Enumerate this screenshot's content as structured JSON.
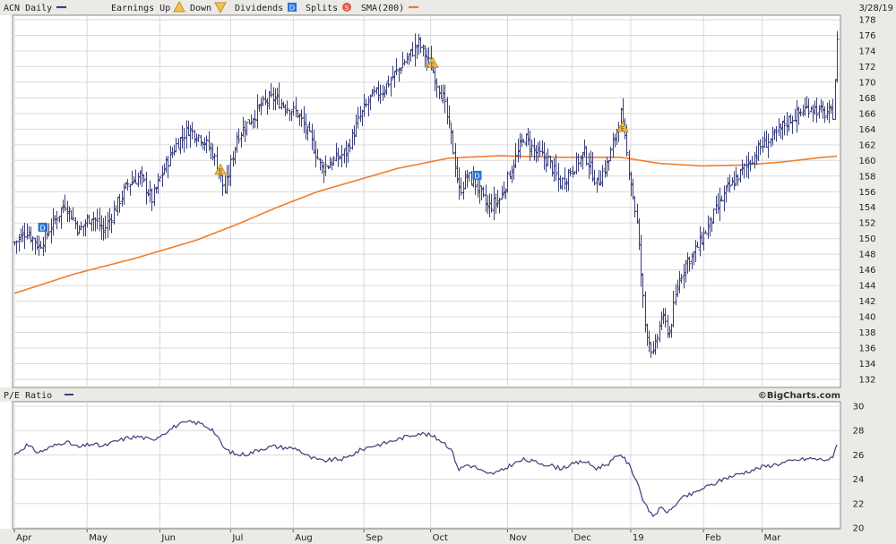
{
  "chart_data": [
    {
      "type": "ohlc",
      "ticker": "ACN",
      "period": "Daily",
      "date": "3/28/19",
      "legend": [
        {
          "label": "ACN Daily",
          "color": "#3a3f7a",
          "icon": "line-swatch"
        },
        {
          "label": "Earnings Up",
          "color": "#c98c14",
          "icon": "triangle-up"
        },
        {
          "label": "Down",
          "color": "#c98c14",
          "icon": "triangle-down"
        },
        {
          "label": "Dividends",
          "color": "#2a74d8",
          "icon": "square-d",
          "glyph": "D"
        },
        {
          "label": "Splits",
          "color": "#e05a4a",
          "icon": "circle-s",
          "glyph": "S"
        },
        {
          "label": "SMA(200)",
          "color": "#f07d2e",
          "icon": "line-swatch"
        }
      ],
      "ylim": [
        132,
        178
      ],
      "yticks": [
        132,
        134,
        136,
        138,
        140,
        142,
        144,
        146,
        148,
        150,
        152,
        154,
        156,
        158,
        160,
        162,
        164,
        166,
        168,
        170,
        172,
        174,
        176,
        178
      ],
      "grid": true,
      "price_anchors": [
        [
          0,
          149.5
        ],
        [
          6,
          151
        ],
        [
          12,
          149
        ],
        [
          19,
          152
        ],
        [
          25,
          154.5
        ],
        [
          32,
          151
        ],
        [
          38,
          153
        ],
        [
          44,
          151
        ],
        [
          50,
          154
        ],
        [
          56,
          157
        ],
        [
          62,
          158
        ],
        [
          68,
          155
        ],
        [
          74,
          159
        ],
        [
          80,
          162
        ],
        [
          86,
          164
        ],
        [
          92,
          163
        ],
        [
          98,
          161
        ],
        [
          104,
          156
        ],
        [
          110,
          163
        ],
        [
          116,
          165
        ],
        [
          122,
          167
        ],
        [
          128,
          168
        ],
        [
          134,
          167
        ],
        [
          140,
          166
        ],
        [
          146,
          163
        ],
        [
          152,
          159
        ],
        [
          158,
          160
        ],
        [
          164,
          161
        ],
        [
          170,
          165
        ],
        [
          176,
          168
        ],
        [
          182,
          169
        ],
        [
          188,
          171
        ],
        [
          194,
          173
        ],
        [
          200,
          175
        ],
        [
          206,
          172
        ],
        [
          212,
          168
        ],
        [
          216,
          163
        ],
        [
          220,
          156
        ],
        [
          224,
          158
        ],
        [
          228,
          157
        ],
        [
          234,
          154
        ],
        [
          240,
          155
        ],
        [
          246,
          159
        ],
        [
          252,
          163
        ],
        [
          258,
          161
        ],
        [
          264,
          160
        ],
        [
          270,
          157
        ],
        [
          276,
          159
        ],
        [
          282,
          161
        ],
        [
          288,
          157
        ],
        [
          294,
          160
        ],
        [
          300,
          166
        ],
        [
          304,
          159
        ],
        [
          308,
          152
        ],
        [
          312,
          139
        ],
        [
          316,
          135
        ],
        [
          320,
          140
        ],
        [
          324,
          138
        ],
        [
          328,
          144
        ],
        [
          332,
          147
        ],
        [
          336,
          148
        ],
        [
          340,
          150
        ],
        [
          346,
          153
        ],
        [
          352,
          156
        ],
        [
          358,
          158
        ],
        [
          364,
          160
        ],
        [
          370,
          162
        ],
        [
          376,
          163
        ],
        [
          382,
          165
        ],
        [
          388,
          166
        ],
        [
          394,
          167
        ],
        [
          400,
          166
        ],
        [
          405,
          166
        ],
        [
          407,
          175
        ]
      ],
      "sma_200": [
        [
          0,
          143
        ],
        [
          30,
          145.5
        ],
        [
          60,
          147.5
        ],
        [
          90,
          149.8
        ],
        [
          110,
          151.8
        ],
        [
          130,
          154
        ],
        [
          150,
          156
        ],
        [
          170,
          157.5
        ],
        [
          190,
          159
        ],
        [
          215,
          160.3
        ],
        [
          240,
          160.6
        ],
        [
          270,
          160.4
        ],
        [
          300,
          160.4
        ],
        [
          320,
          159.6
        ],
        [
          340,
          159.3
        ],
        [
          360,
          159.4
        ],
        [
          380,
          159.8
        ],
        [
          400,
          160.4
        ],
        [
          410,
          160.6
        ]
      ],
      "earnings_markers": [
        {
          "index": 102,
          "direction": "up",
          "glyph": "E"
        },
        {
          "index": 207,
          "direction": "up",
          "glyph": "E"
        },
        {
          "index": 301,
          "direction": "up",
          "glyph": "E"
        }
      ],
      "dividend_markers": [
        {
          "index": 14,
          "glyph": "D"
        },
        {
          "index": 229,
          "glyph": "D"
        }
      ]
    },
    {
      "type": "line",
      "title": "P/E Ratio",
      "series_color": "#3a3f7a",
      "ylim": [
        20,
        30
      ],
      "yticks": [
        20,
        22,
        24,
        26,
        28,
        30
      ],
      "grid": true,
      "values": [
        [
          0,
          26
        ],
        [
          6,
          26.8
        ],
        [
          12,
          26.2
        ],
        [
          19,
          26.7
        ],
        [
          25,
          27.1
        ],
        [
          32,
          26.6
        ],
        [
          38,
          26.9
        ],
        [
          44,
          26.7
        ],
        [
          50,
          27.1
        ],
        [
          56,
          27.4
        ],
        [
          62,
          27.5
        ],
        [
          68,
          27.2
        ],
        [
          74,
          27.8
        ],
        [
          80,
          28.4
        ],
        [
          86,
          28.7
        ],
        [
          92,
          28.6
        ],
        [
          98,
          28.1
        ],
        [
          104,
          26.5
        ],
        [
          110,
          26
        ],
        [
          116,
          26.1
        ],
        [
          122,
          26.5
        ],
        [
          128,
          26.7
        ],
        [
          134,
          26.6
        ],
        [
          140,
          26.5
        ],
        [
          146,
          25.8
        ],
        [
          152,
          25.5
        ],
        [
          158,
          25.6
        ],
        [
          164,
          25.7
        ],
        [
          170,
          26.3
        ],
        [
          176,
          26.7
        ],
        [
          182,
          26.9
        ],
        [
          188,
          27.2
        ],
        [
          194,
          27.5
        ],
        [
          200,
          27.8
        ],
        [
          206,
          27.6
        ],
        [
          212,
          27.1
        ],
        [
          216,
          26.5
        ],
        [
          220,
          24.8
        ],
        [
          224,
          25.2
        ],
        [
          228,
          25
        ],
        [
          234,
          24.4
        ],
        [
          240,
          24.6
        ],
        [
          246,
          25.2
        ],
        [
          252,
          25.6
        ],
        [
          258,
          25.4
        ],
        [
          264,
          25.2
        ],
        [
          270,
          24.9
        ],
        [
          276,
          25.2
        ],
        [
          282,
          25.5
        ],
        [
          288,
          24.9
        ],
        [
          294,
          25.3
        ],
        [
          300,
          26.1
        ],
        [
          304,
          25.2
        ],
        [
          308,
          23.9
        ],
        [
          312,
          21.9
        ],
        [
          316,
          21
        ],
        [
          320,
          21.6
        ],
        [
          324,
          21.3
        ],
        [
          328,
          22.1
        ],
        [
          332,
          22.6
        ],
        [
          336,
          22.8
        ],
        [
          340,
          23.2
        ],
        [
          346,
          23.6
        ],
        [
          352,
          24.1
        ],
        [
          358,
          24.4
        ],
        [
          364,
          24.7
        ],
        [
          370,
          25
        ],
        [
          376,
          25.2
        ],
        [
          382,
          25.4
        ],
        [
          388,
          25.6
        ],
        [
          394,
          25.7
        ],
        [
          400,
          25.6
        ],
        [
          405,
          25.7
        ],
        [
          407,
          27
        ]
      ]
    }
  ],
  "x_axis": {
    "n_days": 408,
    "months": [
      {
        "label": "Apr",
        "index": 0
      },
      {
        "label": "May",
        "index": 36
      },
      {
        "label": "Jun",
        "index": 72
      },
      {
        "label": "Jul",
        "index": 107
      },
      {
        "label": "Aug",
        "index": 138
      },
      {
        "label": "Sep",
        "index": 173
      },
      {
        "label": "Oct",
        "index": 206
      },
      {
        "label": "Nov",
        "index": 244
      },
      {
        "label": "Dec",
        "index": 276
      },
      {
        "label": "19",
        "index": 305
      },
      {
        "label": "Feb",
        "index": 341
      },
      {
        "label": "Mar",
        "index": 370
      }
    ]
  },
  "labels": {
    "copyright": "©BigCharts.com"
  }
}
